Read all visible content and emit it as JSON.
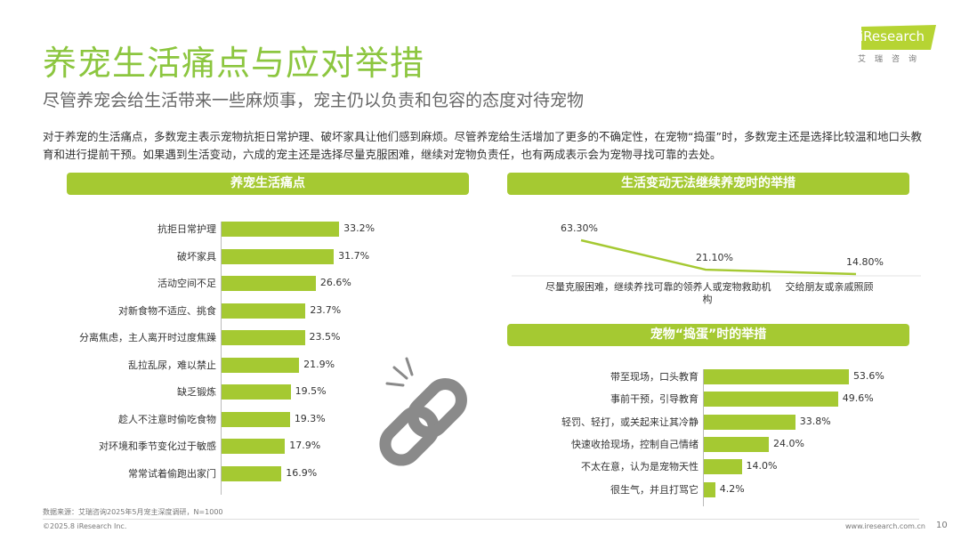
{
  "header": {
    "title": "养宠生活痛点与应对举措",
    "subtitle": "尽管养宠会给生活带来一些麻烦事，宠主仍以负责和包容的态度对待宠物",
    "body": "对于养宠的生活痛点，多数宠主表示宠物抗拒日常护理、破坏家具让他们感到麻烦。尽管养宠给生活增加了更多的不确定性，在宠物“捣蛋”时，多数宠主还是选择比较温和地口头教育和进行提前干预。如果遇到生活变动，六成的宠主还是选择尽量克服困难，继续对宠物负责任，也有两成表示会为宠物寻找可靠的去处。",
    "logo": "iResearch",
    "logo_sub": "艾瑞咨询"
  },
  "colors": {
    "accent": "#a5c932",
    "title": "#8cc63f",
    "icon": "#8a8a8a"
  },
  "decor_icon": "broken-chain-icon",
  "chart_data": [
    {
      "type": "bar",
      "orientation": "horizontal",
      "title": "养宠生活痛点",
      "categories": [
        "抗拒日常护理",
        "破坏家具",
        "活动空间不足",
        "对新食物不适应、挑食",
        "分离焦虑，主人离开时过度焦躁",
        "乱拉乱尿，难以禁止",
        "缺乏锻炼",
        "趁人不注意时偷吃食物",
        "对环境和季节变化过于敏感",
        "常常试着偷跑出家门"
      ],
      "values": [
        33.2,
        31.7,
        26.6,
        23.7,
        23.5,
        21.9,
        19.5,
        19.3,
        17.9,
        16.9
      ],
      "labels": [
        "33.2%",
        "31.7%",
        "26.6%",
        "23.7%",
        "23.5%",
        "21.9%",
        "19.5%",
        "19.3%",
        "17.9%",
        "16.9%"
      ]
    },
    {
      "type": "line",
      "title": "生活变动无法继续养宠时的举措",
      "categories": [
        "尽量克服困难，继续养",
        "找可靠的领养人或宠物救助机构",
        "交给朋友或亲戚照顾"
      ],
      "values": [
        63.3,
        21.1,
        14.8
      ],
      "labels": [
        "63.30%",
        "21.10%",
        "14.80%"
      ]
    },
    {
      "type": "bar",
      "orientation": "horizontal",
      "title": "宠物“捣蛋”时的举措",
      "categories": [
        "带至现场，口头教育",
        "事前干预，引导教育",
        "轻罚、轻打，或关起来让其冷静",
        "快速收拾现场，控制自己情绪",
        "不太在意，认为是宠物天性",
        "很生气，并且打骂它"
      ],
      "values": [
        53.6,
        49.6,
        33.8,
        24.0,
        14.0,
        4.2
      ],
      "labels": [
        "53.6%",
        "49.6%",
        "33.8%",
        "24.0%",
        "14.0%",
        "4.2%"
      ]
    }
  ],
  "footer": {
    "source": "数据来源：艾瑞咨询2025年5月宠主深度调研，N=1000",
    "copyright": "©2025.8 iResearch Inc.",
    "url": "www.iresearch.com.cn",
    "page": "10"
  }
}
